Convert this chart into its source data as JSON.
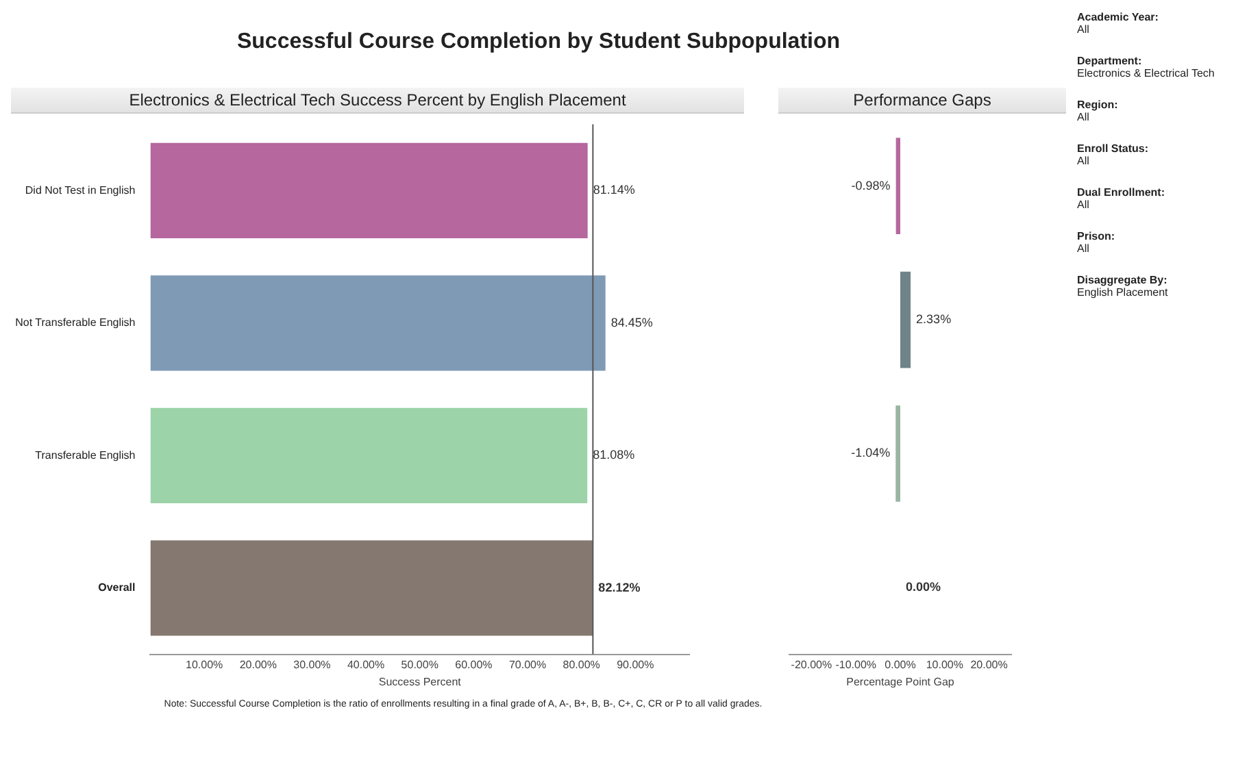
{
  "chart_data": [
    {
      "type": "bar",
      "orientation": "horizontal",
      "title": "Successful Course Completion by Student Subpopulation",
      "subtitle": "Electronics & Electrical Tech Success Percent by English Placement",
      "xlabel": "Success Percent",
      "categories": [
        "Did Not Test in English",
        "Not Transferable English",
        "Transferable English",
        "Overall"
      ],
      "values": [
        81.14,
        84.45,
        81.08,
        82.12
      ],
      "colors": [
        "#b5679e",
        "#7f9ab5",
        "#9dd3a8",
        "#857870"
      ],
      "value_labels": [
        "81.14%",
        "84.45%",
        "81.08%",
        "82.12%"
      ],
      "xlim": [
        0,
        100
      ],
      "xticks": [
        {
          "value": 10,
          "label": "10.00%"
        },
        {
          "value": 20,
          "label": "20.00%"
        },
        {
          "value": 30,
          "label": "30.00%"
        },
        {
          "value": 40,
          "label": "40.00%"
        },
        {
          "value": 50,
          "label": "50.00%"
        },
        {
          "value": 60,
          "label": "60.00%"
        },
        {
          "value": 70,
          "label": "70.00%"
        },
        {
          "value": 80,
          "label": "80.00%"
        },
        {
          "value": 90,
          "label": "90.00%"
        }
      ],
      "ref_lines": [
        {
          "axis": "x",
          "value": 82.12,
          "color": "#555555"
        }
      ],
      "annotations": [
        "Note: Successful Course Completion is the ratio of enrollments resulting in a final grade of A, A-, B+, B, B-, C+, C, CR or P to all valid grades."
      ]
    },
    {
      "type": "bar",
      "orientation": "horizontal",
      "subtitle": "Performance Gaps",
      "xlabel": "Percentage Point Gap",
      "categories": [
        null,
        null,
        null,
        null
      ],
      "values": [
        -0.98,
        2.33,
        -1.04,
        0.0
      ],
      "colors": [
        "#b5679e",
        "#6f8488",
        "#9ab5a3",
        "#857870"
      ],
      "value_labels": [
        "-0.98%",
        "2.33%",
        "-1.04%",
        "0.00%"
      ],
      "tick_labels": "x",
      "xlim": [
        -25,
        25
      ],
      "xticks": [
        {
          "value": -20,
          "label": "-20.00%"
        },
        {
          "value": -10,
          "label": "-10.00%"
        },
        {
          "value": 0,
          "label": "0.00%"
        },
        {
          "value": 10,
          "label": "10.00%"
        },
        {
          "value": 20,
          "label": "20.00%"
        }
      ]
    },
    {
      "type": "other",
      "annotations": [
        "Academic Year:",
        "All",
        "Department:",
        "Electronics & Electrical Tech",
        "Region:",
        "All",
        "Enroll Status:",
        "All",
        "Dual Enrollment:",
        "All",
        "Prison:",
        "All",
        "Disaggregate By:",
        "English Placement"
      ]
    }
  ]
}
